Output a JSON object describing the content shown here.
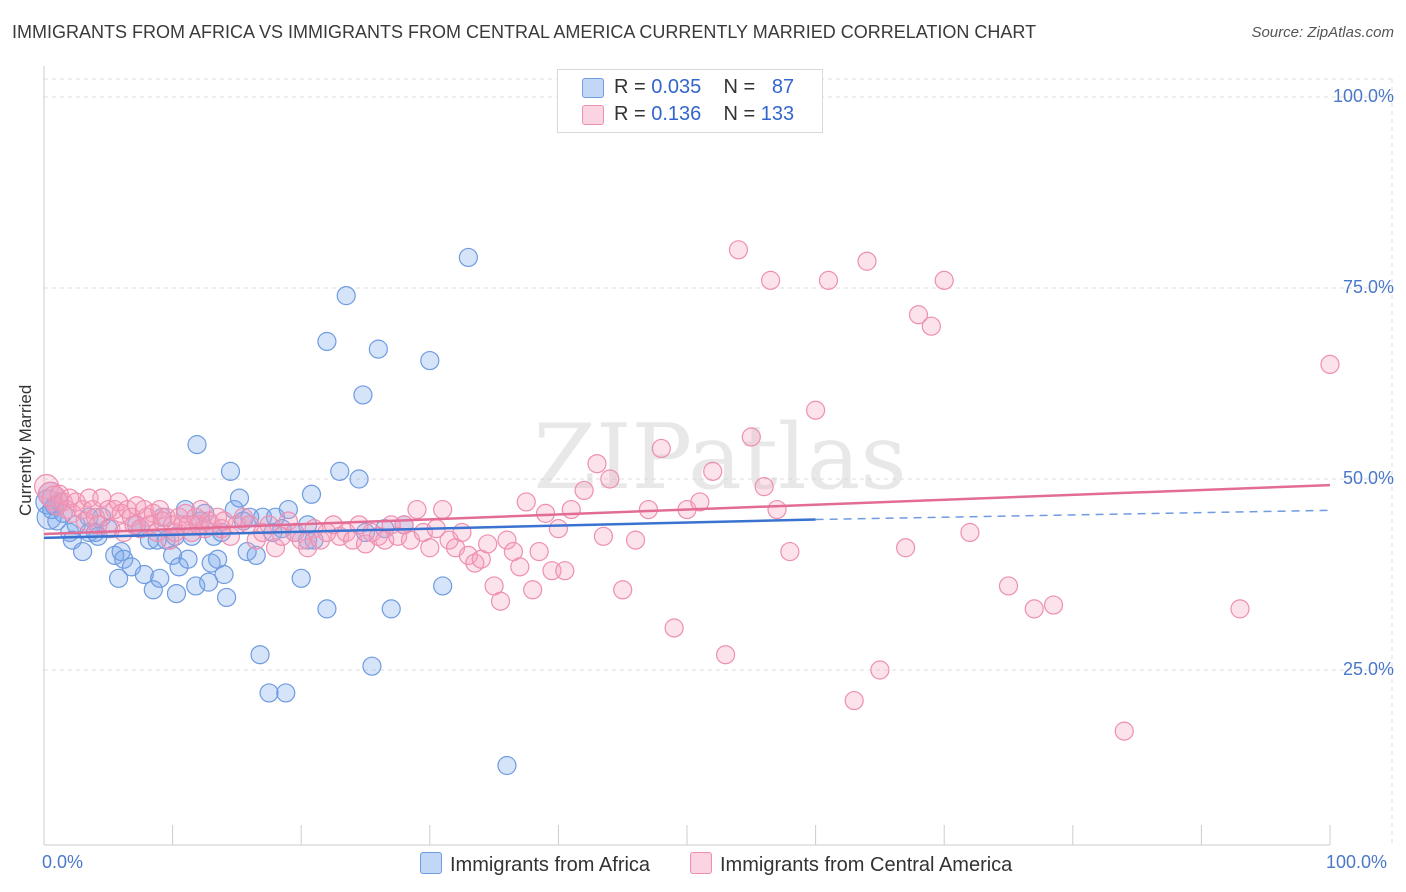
{
  "header": {
    "title": "IMMIGRANTS FROM AFRICA VS IMMIGRANTS FROM CENTRAL AMERICA CURRENTLY MARRIED CORRELATION CHART",
    "source": "Source: ZipAtlas.com"
  },
  "watermark": "ZIPatlas",
  "legend": {
    "rows": [
      {
        "r_label": "R =",
        "r_value": "0.035",
        "n_label": "N =",
        "n_value": "87"
      },
      {
        "r_label": "R =",
        "r_value": "0.136",
        "n_label": "N =",
        "n_value": "133"
      }
    ]
  },
  "colors": {
    "africa_fill": "rgba(120,165,235,0.30)",
    "africa_stroke": "#6f9be0",
    "africa_line": "#3a72d0",
    "central_fill": "rgba(245,160,190,0.30)",
    "central_stroke": "#ee8fb0",
    "central_line": "#e26c96",
    "grid": "#dddddd",
    "tick_label": "#4a78c8"
  },
  "chart_data": {
    "type": "scatter",
    "title": "IMMIGRANTS FROM AFRICA VS IMMIGRANTS FROM CENTRAL AMERICA CURRENTLY MARRIED CORRELATION CHART",
    "ylabel": "Currently Married",
    "xlabel": "",
    "xlim": [
      0,
      100
    ],
    "ylim": [
      0,
      105
    ],
    "x_tick_labels": [
      "0.0%",
      "100.0%"
    ],
    "y_ticks": [
      {
        "value": 25,
        "label": "25.0%"
      },
      {
        "value": 50,
        "label": "50.0%"
      },
      {
        "value": 75,
        "label": "75.0%"
      },
      {
        "value": 100,
        "label": "100.0%"
      }
    ],
    "grid": true,
    "legend_position": "bottom",
    "series": [
      {
        "name": "Immigrants from Africa",
        "r": 0.035,
        "n": 87,
        "trend": {
          "x0": 0,
          "y0": 42.3,
          "x1": 60,
          "y1": 44.7,
          "dash_to_x": 100,
          "dash_to_y": 45.9
        },
        "points": [
          [
            0.3,
            47
          ],
          [
            0.4,
            45
          ],
          [
            0.5,
            48
          ],
          [
            0.6,
            46
          ],
          [
            0.8,
            46.5
          ],
          [
            1.0,
            44.5
          ],
          [
            1.2,
            47
          ],
          [
            1.5,
            45.5
          ],
          [
            2,
            43
          ],
          [
            2.2,
            42
          ],
          [
            2.5,
            44
          ],
          [
            3,
            40.5
          ],
          [
            3.5,
            45
          ],
          [
            3.5,
            43
          ],
          [
            4,
            43
          ],
          [
            4.2,
            42.5
          ],
          [
            4.5,
            45
          ],
          [
            5,
            43.5
          ],
          [
            5.5,
            40
          ],
          [
            5.8,
            37
          ],
          [
            6,
            40.5
          ],
          [
            6.2,
            39.5
          ],
          [
            6.8,
            38.5
          ],
          [
            7.2,
            44
          ],
          [
            7.5,
            43.5
          ],
          [
            7.8,
            37.5
          ],
          [
            8.2,
            42
          ],
          [
            8.5,
            35.5
          ],
          [
            8.8,
            42
          ],
          [
            9,
            37
          ],
          [
            9.2,
            45
          ],
          [
            9.5,
            42
          ],
          [
            10,
            40
          ],
          [
            10.2,
            42.5
          ],
          [
            10.3,
            35
          ],
          [
            10.5,
            38.5
          ],
          [
            11,
            46
          ],
          [
            11.2,
            39.5
          ],
          [
            11.5,
            42.5
          ],
          [
            11.8,
            36
          ],
          [
            11.9,
            54.5
          ],
          [
            12.2,
            44.5
          ],
          [
            12.5,
            45.5
          ],
          [
            12.8,
            36.5
          ],
          [
            13,
            39
          ],
          [
            13.2,
            42.5
          ],
          [
            13.5,
            39.5
          ],
          [
            13.8,
            43
          ],
          [
            14,
            37.5
          ],
          [
            14.2,
            34.5
          ],
          [
            14.5,
            51
          ],
          [
            14.8,
            46
          ],
          [
            15.2,
            47.5
          ],
          [
            15.5,
            44.5
          ],
          [
            15.8,
            40.5
          ],
          [
            16,
            45
          ],
          [
            16.5,
            40
          ],
          [
            16.8,
            27
          ],
          [
            17,
            45
          ],
          [
            17.5,
            22
          ],
          [
            17.8,
            43
          ],
          [
            18,
            45
          ],
          [
            18.5,
            43.5
          ],
          [
            18.8,
            22
          ],
          [
            19,
            46
          ],
          [
            19.5,
            43
          ],
          [
            20,
            37
          ],
          [
            20.5,
            44
          ],
          [
            20.8,
            48
          ],
          [
            20.5,
            42
          ],
          [
            21,
            42
          ],
          [
            22,
            68
          ],
          [
            22,
            33
          ],
          [
            23,
            51
          ],
          [
            23.5,
            74
          ],
          [
            24.5,
            50
          ],
          [
            24.8,
            61
          ],
          [
            25,
            43
          ],
          [
            25.5,
            25.5
          ],
          [
            26,
            67
          ],
          [
            26.5,
            43.5
          ],
          [
            27,
            33
          ],
          [
            28,
            44
          ],
          [
            30,
            65.5
          ],
          [
            31,
            36
          ],
          [
            33,
            79
          ],
          [
            36,
            12.5
          ]
        ]
      },
      {
        "name": "Immigrants from Central America",
        "r": 0.136,
        "n": 133,
        "trend": {
          "x0": 0,
          "y0": 42.8,
          "x1": 100,
          "y1": 49.2
        },
        "points": [
          [
            0.2,
            49
          ],
          [
            0.5,
            48
          ],
          [
            0.8,
            47.5
          ],
          [
            1,
            46.5
          ],
          [
            1.2,
            48
          ],
          [
            1.5,
            47
          ],
          [
            1.8,
            46
          ],
          [
            2,
            47.5
          ],
          [
            2.2,
            45.5
          ],
          [
            2.5,
            47
          ],
          [
            3,
            46
          ],
          [
            3.2,
            44.5
          ],
          [
            3.5,
            47.5
          ],
          [
            3.8,
            46
          ],
          [
            4,
            45
          ],
          [
            4.2,
            44
          ],
          [
            4.5,
            47.5
          ],
          [
            5,
            46
          ],
          [
            5.2,
            43.5
          ],
          [
            5.5,
            46
          ],
          [
            5.8,
            47
          ],
          [
            6,
            45.5
          ],
          [
            6.2,
            43
          ],
          [
            6.5,
            46
          ],
          [
            6.8,
            45
          ],
          [
            7,
            44
          ],
          [
            7.2,
            46.5
          ],
          [
            7.5,
            43.5
          ],
          [
            7.8,
            46
          ],
          [
            8,
            45
          ],
          [
            8.2,
            44
          ],
          [
            8.5,
            45.5
          ],
          [
            8.8,
            43
          ],
          [
            9,
            46
          ],
          [
            9.2,
            44.5
          ],
          [
            9.5,
            45
          ],
          [
            9.8,
            42
          ],
          [
            10,
            44
          ],
          [
            10.2,
            43
          ],
          [
            10.5,
            45
          ],
          [
            10.8,
            44
          ],
          [
            11,
            45.5
          ],
          [
            11.2,
            44
          ],
          [
            11.5,
            43
          ],
          [
            11.8,
            45
          ],
          [
            12,
            44
          ],
          [
            12.2,
            46
          ],
          [
            12.5,
            43.5
          ],
          [
            12.8,
            44.5
          ],
          [
            13,
            44
          ],
          [
            13.5,
            45
          ],
          [
            13.8,
            43.5
          ],
          [
            14,
            44.5
          ],
          [
            14.5,
            42.5
          ],
          [
            15,
            44
          ],
          [
            15.5,
            45
          ],
          [
            16,
            44
          ],
          [
            16.5,
            42
          ],
          [
            17,
            43
          ],
          [
            17.5,
            44
          ],
          [
            18,
            41
          ],
          [
            18.5,
            42.5
          ],
          [
            19,
            44.5
          ],
          [
            19.5,
            43
          ],
          [
            20,
            42
          ],
          [
            20.5,
            41
          ],
          [
            21,
            43.5
          ],
          [
            21.5,
            42
          ],
          [
            22,
            43
          ],
          [
            22.5,
            44
          ],
          [
            23,
            42.5
          ],
          [
            23.5,
            43
          ],
          [
            24,
            42
          ],
          [
            24.5,
            44
          ],
          [
            25,
            41.5
          ],
          [
            25.5,
            43
          ],
          [
            26,
            42.5
          ],
          [
            26.5,
            42
          ],
          [
            27,
            44
          ],
          [
            27.5,
            42.5
          ],
          [
            28,
            44
          ],
          [
            28.5,
            42
          ],
          [
            29,
            46
          ],
          [
            29.5,
            43
          ],
          [
            30,
            41
          ],
          [
            30.5,
            43.5
          ],
          [
            31,
            46
          ],
          [
            31.5,
            42
          ],
          [
            32,
            41
          ],
          [
            32.5,
            43
          ],
          [
            33,
            40
          ],
          [
            33.5,
            39
          ],
          [
            34,
            39.5
          ],
          [
            34.5,
            41.5
          ],
          [
            35,
            36
          ],
          [
            35.5,
            34
          ],
          [
            36,
            42
          ],
          [
            36.5,
            40.5
          ],
          [
            37,
            38.5
          ],
          [
            37.5,
            47
          ],
          [
            38,
            35.5
          ],
          [
            38.5,
            40.5
          ],
          [
            39,
            45.5
          ],
          [
            39.5,
            38
          ],
          [
            40,
            43.5
          ],
          [
            40.5,
            38
          ],
          [
            41,
            46
          ],
          [
            42,
            48.5
          ],
          [
            43,
            52
          ],
          [
            43.5,
            42.5
          ],
          [
            44,
            50
          ],
          [
            45,
            35.5
          ],
          [
            46,
            42
          ],
          [
            47,
            46
          ],
          [
            48,
            54
          ],
          [
            49,
            30.5
          ],
          [
            50,
            46
          ],
          [
            51,
            47
          ],
          [
            52,
            51
          ],
          [
            53,
            27
          ],
          [
            54,
            80
          ],
          [
            55,
            55.5
          ],
          [
            56,
            49
          ],
          [
            56.5,
            76
          ],
          [
            57,
            46
          ],
          [
            58,
            40.5
          ],
          [
            60,
            59
          ],
          [
            61,
            76
          ],
          [
            63,
            21
          ],
          [
            64,
            78.5
          ],
          [
            65,
            25
          ],
          [
            67,
            41
          ],
          [
            68,
            71.5
          ],
          [
            69,
            70
          ],
          [
            70,
            76
          ],
          [
            72,
            43
          ],
          [
            75,
            36
          ],
          [
            77,
            33
          ],
          [
            78.5,
            33.5
          ],
          [
            84,
            17
          ],
          [
            93,
            33
          ],
          [
            100,
            65
          ]
        ]
      }
    ]
  }
}
